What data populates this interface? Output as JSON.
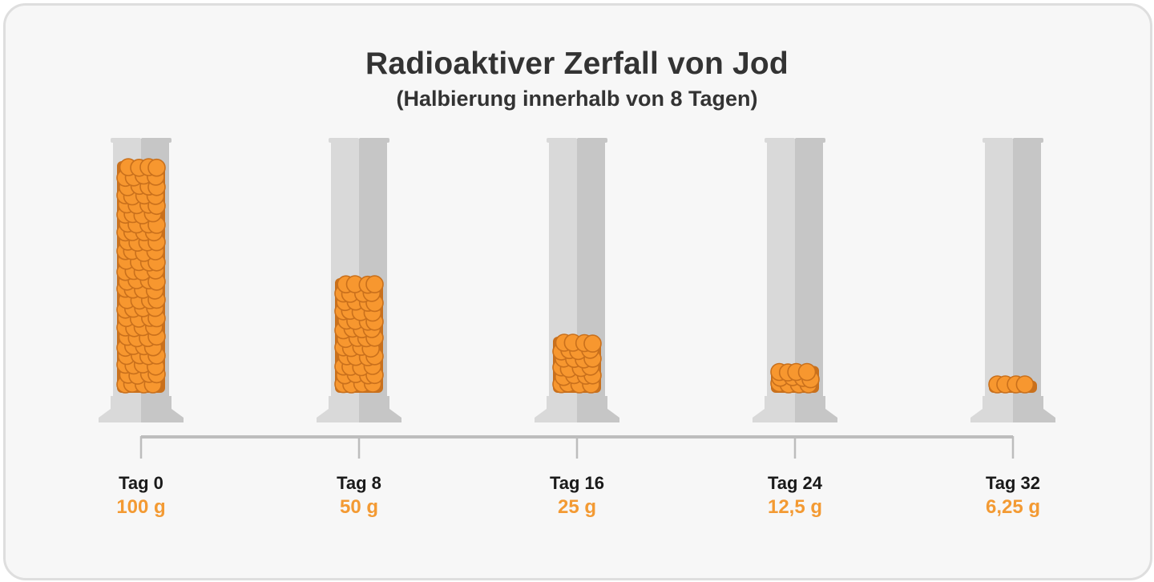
{
  "title": "Radioaktiver Zerfall von Jod",
  "subtitle": "(Halbierung innerhalb von 8 Tagen)",
  "colors": {
    "particle_fill": "#f7972f",
    "particle_stroke": "#c9701c",
    "cylinder_light": "#d9d9d9",
    "cylinder_dark": "#c6c6c6",
    "timeline": "#bdbdbd",
    "mass_text": "#f39a33"
  },
  "stages": [
    {
      "day_label": "Tag 0",
      "mass_label": "100 g",
      "mass": 100
    },
    {
      "day_label": "Tag 8",
      "mass_label": "50 g",
      "mass": 50
    },
    {
      "day_label": "Tag 16",
      "mass_label": "25 g",
      "mass": 25
    },
    {
      "day_label": "Tag 24",
      "mass_label": "12,5 g",
      "mass": 12.5
    },
    {
      "day_label": "Tag 32",
      "mass_label": "6,25 g",
      "mass": 6.25
    }
  ]
}
